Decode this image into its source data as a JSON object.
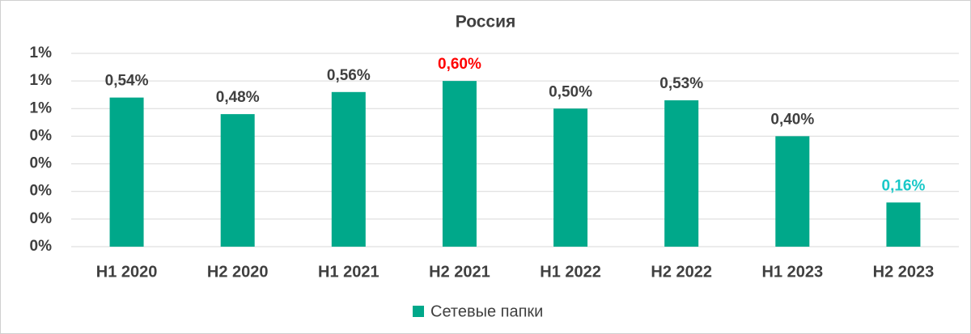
{
  "chart_data": {
    "type": "bar",
    "title": "Россия",
    "categories": [
      "H1 2020",
      "H2 2020",
      "H1 2021",
      "H2 2021",
      "H1 2022",
      "H2 2022",
      "H1 2023",
      "H2 2023"
    ],
    "series": [
      {
        "name": "Сетевые папки",
        "color": "#00a88a",
        "values": [
          0.54,
          0.48,
          0.56,
          0.6,
          0.5,
          0.53,
          0.4,
          0.16
        ],
        "value_labels": [
          "0,54%",
          "0,48%",
          "0,56%",
          "0,60%",
          "0,50%",
          "0,53%",
          "0,40%",
          "0,16%"
        ],
        "value_label_colors": [
          "#404040",
          "#404040",
          "#404040",
          "#ff0000",
          "#404040",
          "#404040",
          "#404040",
          "#19c8c8"
        ]
      }
    ],
    "ylim": [
      0,
      0.7
    ],
    "yticks": [
      {
        "value": 0,
        "label": "0%"
      },
      {
        "value": 0.1,
        "label": "0%"
      },
      {
        "value": 0.2,
        "label": "0%"
      },
      {
        "value": 0.3,
        "label": "0%"
      },
      {
        "value": 0.4,
        "label": "0%"
      },
      {
        "value": 0.5,
        "label": "1%"
      },
      {
        "value": 0.6,
        "label": "1%"
      },
      {
        "value": 0.7,
        "label": "1%"
      }
    ],
    "grid": true
  }
}
